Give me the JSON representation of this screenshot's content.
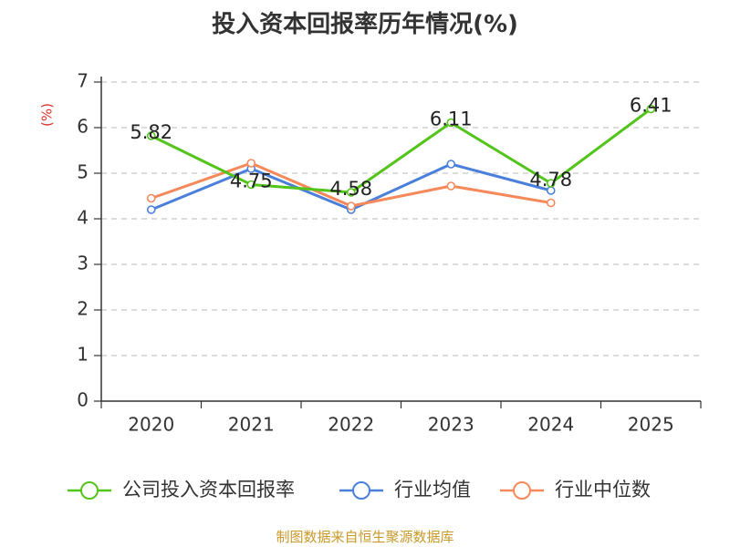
{
  "chart_data": {
    "type": "line",
    "title": "投入资本回报率历年情况(%)",
    "ylabel": "(%)",
    "xlabel": "",
    "categories": [
      "2020",
      "2021",
      "2022",
      "2023",
      "2024",
      "2025"
    ],
    "ylim": [
      0,
      7
    ],
    "yticks": [
      0,
      1,
      2,
      3,
      4,
      5,
      6,
      7
    ],
    "grid": "horizontal dashed",
    "legend_position": "bottom",
    "series": [
      {
        "name": "公司投入资本回报率",
        "color": "#52c41a",
        "values": [
          5.82,
          4.75,
          4.58,
          6.11,
          4.78,
          6.41
        ],
        "labels": [
          "5.82",
          "4.75",
          "4.58",
          "6.11",
          "4.78",
          "6.41"
        ]
      },
      {
        "name": "行业均值",
        "color": "#4a7fdb",
        "values": [
          4.2,
          5.1,
          4.2,
          5.2,
          4.62,
          null
        ]
      },
      {
        "name": "行业中位数",
        "color": "#f5895a",
        "values": [
          4.45,
          5.22,
          4.28,
          4.72,
          4.35,
          null
        ]
      }
    ]
  },
  "source": "制图数据来自恒生聚源数据库"
}
